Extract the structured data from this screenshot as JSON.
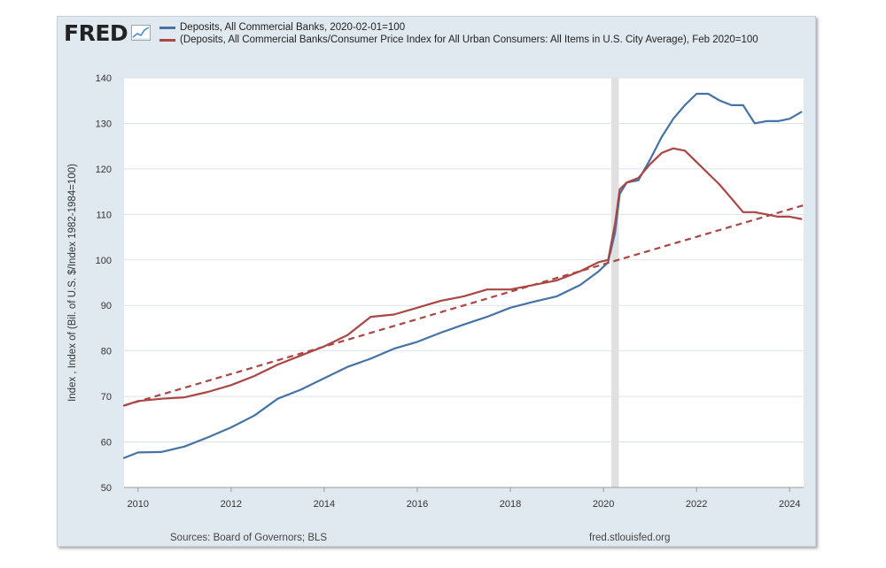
{
  "logo_text": "FRED",
  "legend": [
    {
      "label": "Deposits, All Commercial Banks, 2020-02-01=100",
      "color": "#4572a7"
    },
    {
      "label": "(Deposits, All Commercial Banks/Consumer Price Index for All Urban Consumers: All Items in U.S. City Average), Feb 2020=100",
      "color": "#aa4643"
    }
  ],
  "footer": {
    "source": "Sources: Board of Governors; BLS",
    "site": "fred.stlouisfed.org"
  },
  "chart_data": {
    "type": "line",
    "title": "",
    "xlabel": "",
    "ylabel": "Index , Index of (Bil. of U.S. $/Index 1982-1984=100)",
    "xlim": [
      2009.7,
      2024.3
    ],
    "ylim": [
      50,
      140
    ],
    "x_ticks": [
      2010,
      2012,
      2014,
      2016,
      2018,
      2020,
      2022,
      2024
    ],
    "y_ticks": [
      50,
      60,
      70,
      80,
      90,
      100,
      110,
      120,
      130,
      140
    ],
    "grid": "horizontal",
    "recession_band": [
      2020.17,
      2020.33
    ],
    "series": [
      {
        "name": "Deposits, All Commercial Banks, 2020-02-01=100",
        "color": "#4572a7",
        "style": "solid",
        "x": [
          2009.7,
          2010.0,
          2010.5,
          2011.0,
          2011.5,
          2012.0,
          2012.5,
          2013.0,
          2013.5,
          2014.0,
          2014.5,
          2015.0,
          2015.5,
          2016.0,
          2016.5,
          2017.0,
          2017.5,
          2018.0,
          2018.5,
          2019.0,
          2019.5,
          2019.9,
          2020.1,
          2020.25,
          2020.35,
          2020.5,
          2020.75,
          2021.0,
          2021.25,
          2021.5,
          2021.75,
          2022.0,
          2022.25,
          2022.5,
          2022.75,
          2023.0,
          2023.25,
          2023.5,
          2023.75,
          2024.0,
          2024.25
        ],
        "values": [
          56.5,
          57.7,
          57.8,
          59.0,
          61.0,
          63.2,
          65.8,
          69.5,
          71.5,
          74.0,
          76.5,
          78.3,
          80.5,
          82.0,
          84.0,
          85.8,
          87.5,
          89.5,
          90.8,
          92.0,
          94.5,
          97.5,
          99.5,
          106.0,
          114.5,
          117.0,
          117.5,
          122.0,
          127.0,
          131.0,
          134.0,
          136.5,
          136.5,
          135.0,
          134.0,
          134.0,
          130.0,
          130.5,
          130.5,
          131.0,
          132.5
        ]
      },
      {
        "name": "(Deposits, All Commercial Banks/Consumer Price Index for All Urban Consumers: All Items in U.S. City Average), Feb 2020=100",
        "color": "#aa4643",
        "style": "solid",
        "x": [
          2009.7,
          2010.0,
          2010.5,
          2011.0,
          2011.5,
          2012.0,
          2012.5,
          2013.0,
          2013.5,
          2014.0,
          2014.5,
          2015.0,
          2015.5,
          2016.0,
          2016.5,
          2017.0,
          2017.5,
          2018.0,
          2018.5,
          2019.0,
          2019.5,
          2019.9,
          2020.1,
          2020.25,
          2020.35,
          2020.5,
          2020.75,
          2021.0,
          2021.25,
          2021.5,
          2021.75,
          2022.0,
          2022.25,
          2022.5,
          2022.75,
          2023.0,
          2023.25,
          2023.5,
          2023.75,
          2024.0,
          2024.25
        ],
        "values": [
          68.0,
          69.0,
          69.5,
          69.8,
          71.0,
          72.5,
          74.5,
          77.0,
          79.0,
          81.0,
          83.5,
          87.5,
          88.0,
          89.5,
          91.0,
          92.0,
          93.5,
          93.5,
          94.5,
          95.5,
          97.5,
          99.5,
          100.0,
          108.0,
          115.5,
          117.0,
          118.0,
          121.0,
          123.5,
          124.5,
          124.0,
          121.5,
          119.0,
          116.5,
          113.5,
          110.5,
          110.5,
          110.0,
          109.5,
          109.5,
          109.0
        ]
      },
      {
        "name": "",
        "color": "#aa4643",
        "style": "dashed",
        "x": [
          2009.7,
          2024.3
        ],
        "values": [
          68.0,
          112.0
        ]
      }
    ]
  }
}
